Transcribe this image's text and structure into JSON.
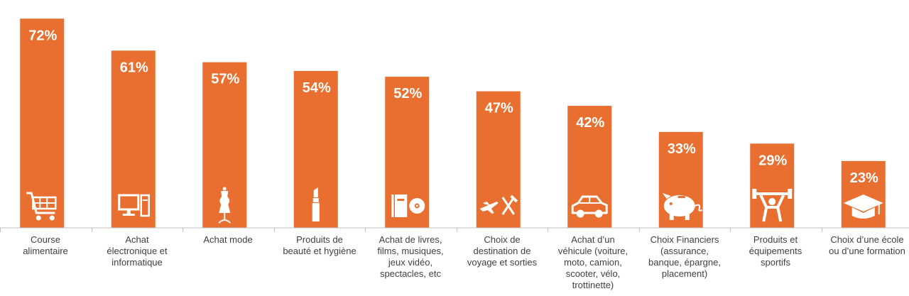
{
  "chart_data": {
    "type": "bar",
    "categories": [
      [
        "Course",
        "alimentaire"
      ],
      [
        "Achat",
        "électronique et",
        "informatique"
      ],
      [
        "Achat  mode"
      ],
      [
        "Produits de",
        "beauté et hygiène"
      ],
      [
        "Achat  de livres,",
        "films, musiques,",
        "jeux vidéo,",
        "spectacles, etc"
      ],
      [
        "Choix de",
        "destination de",
        "voyage et sorties"
      ],
      [
        "Achat d’un",
        "véhicule (voiture,",
        "moto, camion,",
        "scooter, vélo,",
        "trottinette)"
      ],
      [
        "Choix Financiers",
        "(assurance,",
        "banque, épargne,",
        "placement)"
      ],
      [
        "Produits et",
        "équipements",
        "sportifs"
      ],
      [
        "Choix d’une école",
        "ou d’une formation"
      ]
    ],
    "values": [
      72,
      61,
      57,
      54,
      52,
      47,
      42,
      33,
      29,
      23
    ],
    "value_labels": [
      "72%",
      "61%",
      "57%",
      "54%",
      "52%",
      "47%",
      "42%",
      "33%",
      "29%",
      "23%"
    ],
    "icons": [
      "shopping-cart-icon",
      "computer-icon",
      "dress-mannequin-icon",
      "lipstick-icon",
      "book-disc-icon",
      "plane-cutlery-icon",
      "car-icon",
      "piggy-bank-icon",
      "weightlifter-icon",
      "graduation-cap-icon"
    ],
    "ylim": [
      0,
      80
    ],
    "grid": false,
    "legend": "none",
    "bar_color": "#E86F2F",
    "label_color": "#FFFFFF",
    "axis_color": "#BFBFBF"
  }
}
